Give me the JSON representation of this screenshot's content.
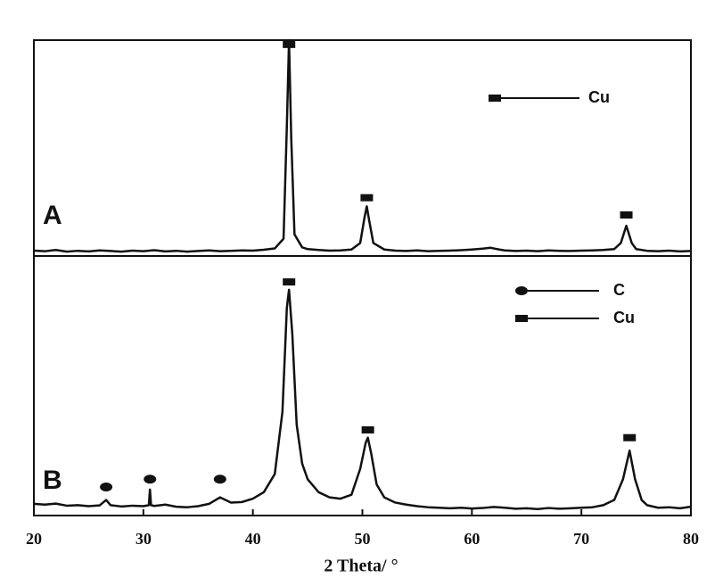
{
  "chart_data": [
    {
      "type": "line",
      "label": "A",
      "color": "#111111",
      "xlim": [
        20,
        80
      ],
      "ylim": [
        0,
        100
      ],
      "x": [
        20,
        21,
        22,
        23,
        24,
        25,
        26,
        27,
        28,
        29,
        30,
        31,
        32,
        33,
        34,
        35,
        36,
        37,
        38,
        39,
        40,
        41,
        42,
        42.8,
        43.1,
        43.3,
        43.5,
        43.8,
        44.5,
        45,
        46,
        47,
        48,
        49,
        49.8,
        50.2,
        50.4,
        50.6,
        51,
        52,
        53,
        54,
        55,
        56,
        57,
        58,
        59,
        60,
        61,
        61.7,
        62.5,
        63,
        64,
        65,
        66,
        67,
        68,
        69,
        70,
        71,
        72,
        73,
        73.6,
        74.1,
        74.6,
        75,
        76,
        77,
        78,
        79,
        80
      ],
      "values": [
        2.5,
        2.2,
        2.8,
        2.0,
        2.4,
        2.1,
        2.6,
        2.3,
        2.0,
        2.5,
        2.2,
        2.7,
        2.1,
        2.4,
        2.0,
        2.3,
        2.6,
        2.2,
        2.4,
        2.6,
        2.5,
        2.9,
        3.5,
        8,
        60,
        100,
        55,
        10,
        4,
        3.2,
        2.8,
        2.5,
        2.6,
        3.0,
        6,
        18,
        23,
        17,
        6,
        3,
        2.5,
        2.3,
        2.6,
        2.2,
        2.4,
        2.5,
        2.7,
        3.0,
        3.4,
        3.8,
        3.0,
        2.6,
        2.3,
        2.5,
        2.2,
        2.6,
        2.4,
        2.3,
        2.5,
        2.6,
        2.8,
        3.2,
        6,
        14,
        6,
        3.2,
        2.4,
        2.2,
        2.5,
        2.1,
        2.3
      ],
      "markers": [
        {
          "name": "Cu",
          "shape": "rect",
          "x": [
            43.3,
            50.4,
            74.1
          ],
          "y": [
            98,
            27,
            19
          ]
        }
      ]
    },
    {
      "type": "line",
      "label": "B",
      "color": "#111111",
      "xlim": [
        20,
        80
      ],
      "ylim": [
        0,
        100
      ],
      "xticks": [
        20,
        30,
        40,
        50,
        60,
        70,
        80
      ],
      "xlabel": "2 Theta/ °",
      "x": [
        20,
        21,
        22,
        23,
        24,
        25,
        26,
        26.6,
        27,
        28,
        29,
        30,
        30.5,
        30.6,
        30.7,
        31,
        32,
        33,
        34,
        35,
        36,
        37,
        38,
        39,
        40,
        41,
        42,
        42.7,
        43.1,
        43.3,
        43.6,
        44,
        44.5,
        45,
        46,
        47,
        48,
        49,
        49.8,
        50.3,
        50.5,
        50.8,
        51.3,
        52,
        53,
        54,
        55,
        56,
        57,
        58,
        59,
        60,
        61,
        62,
        63,
        64,
        65,
        66,
        67,
        68,
        69,
        70,
        71,
        72,
        73,
        73.8,
        74.4,
        74.9,
        75.5,
        76,
        77,
        78,
        79,
        80
      ],
      "values": [
        4.5,
        4.2,
        4.6,
        3.8,
        4.0,
        3.6,
        3.9,
        6,
        4.0,
        3.5,
        3.8,
        3.6,
        4,
        10,
        4,
        3.7,
        4.2,
        3.4,
        3.2,
        3.6,
        4.5,
        7,
        5,
        5.2,
        6.5,
        9,
        16,
        40,
        80,
        87,
        70,
        35,
        20,
        14,
        9,
        7,
        6.5,
        8,
        18,
        28,
        30,
        24,
        12,
        7,
        5,
        4.2,
        3.6,
        3.2,
        3.0,
        2.8,
        3.0,
        2.7,
        2.9,
        3.3,
        3.0,
        2.6,
        2.8,
        2.5,
        2.9,
        2.6,
        2.8,
        3.0,
        3.2,
        4,
        6,
        14,
        25,
        14,
        6,
        4,
        3,
        3.2,
        2.8,
        3.4
      ],
      "markers": [
        {
          "name": "C",
          "shape": "circle",
          "x": [
            26.6,
            30.6,
            37
          ],
          "y": [
            11,
            14,
            14
          ]
        },
        {
          "name": "Cu",
          "shape": "rect",
          "x": [
            43.3,
            50.5,
            74.4
          ],
          "y": [
            90,
            33,
            30
          ]
        }
      ]
    }
  ]
}
